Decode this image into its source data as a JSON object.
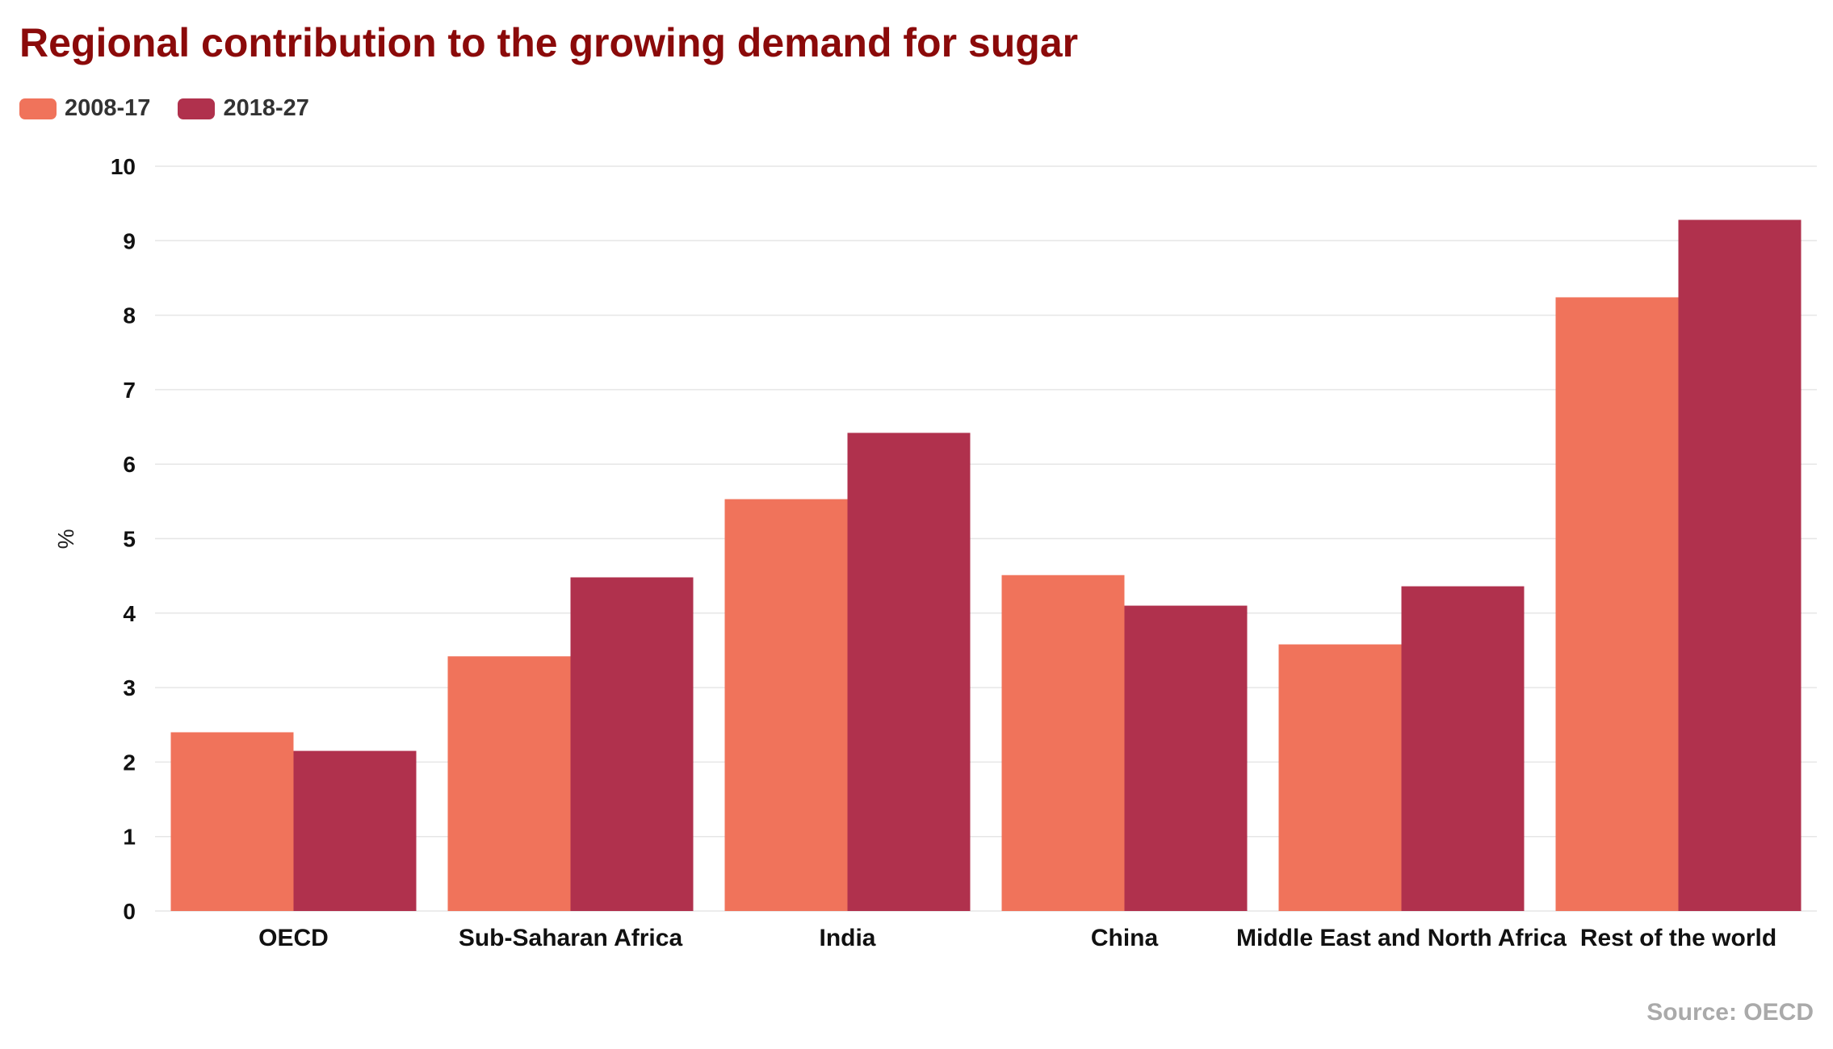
{
  "title": "Regional contribution to the growing demand for sugar",
  "source": "Source: OECD",
  "colors": {
    "series1": "#f0735b",
    "series2": "#b0314d",
    "title": "#8b0a0a",
    "grid": "#e6e6e6"
  },
  "chart_data": {
    "type": "bar",
    "title": "Regional contribution to the growing demand for sugar",
    "xlabel": "",
    "ylabel": "%",
    "ylim": [
      0,
      10
    ],
    "yticks": [
      0,
      1,
      2,
      3,
      4,
      5,
      6,
      7,
      8,
      9,
      10
    ],
    "grid": true,
    "legend": "top-left",
    "categories": [
      "OECD",
      "Sub-Saharan Africa",
      "India",
      "China",
      "Middle East and North Africa",
      "Rest of the world"
    ],
    "series": [
      {
        "name": "2008-17",
        "values": [
          2.4,
          3.42,
          5.53,
          4.51,
          3.58,
          8.24
        ]
      },
      {
        "name": "2018-27",
        "values": [
          2.15,
          4.48,
          6.42,
          4.1,
          4.36,
          9.28
        ]
      }
    ]
  }
}
